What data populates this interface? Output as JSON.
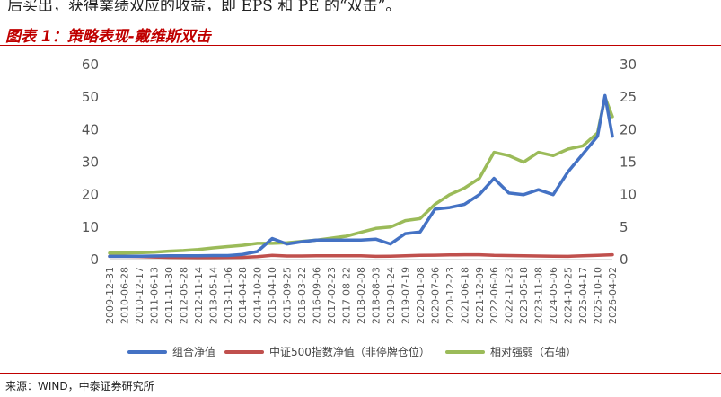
{
  "header": {
    "intro_text": "后买出，获得業绩双应的收益，即 EPS 和 PE 的“双击”。",
    "figure_title": "图表 1：策略表现-戴维斯双击"
  },
  "footer": {
    "source": "来源：WIND，中泰证券研究所"
  },
  "chart_data": {
    "type": "line",
    "x_tick_labels": [
      "2009-12-31",
      "2010-06-28",
      "2010-12-17",
      "2011-06-13",
      "2011-11-30",
      "2012-05-28",
      "2012-11-14",
      "2013-05-14",
      "2013-11-06",
      "2014-04-28",
      "2014-10-20",
      "2015-04-10",
      "2015-09-25",
      "2016-03-22",
      "2016-09-06",
      "2017-02-23",
      "2017-08-22",
      "2018-02-08",
      "2018-08-03",
      "2019-01-24",
      "2019-07-19",
      "2020-01-08",
      "2020-07-06",
      "2020-12-23",
      "2021-06-18",
      "2021-12-09",
      "2022-06-06",
      "2022-11-23",
      "2023-05-18",
      "2023-11-08",
      "2024-05-06",
      "2024-10-25",
      "2025-04-17",
      "2025-10-10",
      "2026-04-02"
    ],
    "y_left": {
      "min": 0,
      "max": 60,
      "ticks": [
        0,
        10,
        20,
        30,
        40,
        50,
        60
      ]
    },
    "y_right": {
      "min": 0,
      "max": 30,
      "ticks": [
        0,
        5,
        10,
        15,
        20,
        25,
        30
      ]
    },
    "grid": false,
    "legend_position": "bottom",
    "series": [
      {
        "name": "组合净值",
        "axis": "left",
        "color": "#4472c4",
        "values": [
          1.0,
          1.0,
          1.05,
          1.1,
          1.15,
          1.15,
          1.2,
          1.25,
          1.25,
          1.6,
          2.5,
          6.5,
          4.8,
          5.5,
          6.0,
          6.0,
          6.0,
          6.0,
          6.3,
          4.8,
          8.0,
          8.5,
          15.5,
          16.0,
          17.0,
          20.0,
          25.0,
          20.5,
          20.0,
          21.5,
          20.0,
          27.0,
          32.5,
          38.0,
          38.0
        ],
        "peak": {
          "after_index": 33,
          "value": 50.5
        }
      },
      {
        "name": "中证500指数净值（非停牌仓位）",
        "axis": "left",
        "color": "#c0504d",
        "values": [
          1.0,
          1.0,
          0.95,
          0.8,
          0.7,
          0.65,
          0.6,
          0.6,
          0.65,
          0.7,
          0.9,
          1.3,
          1.1,
          1.1,
          1.15,
          1.2,
          1.2,
          1.15,
          1.0,
          1.05,
          1.2,
          1.3,
          1.35,
          1.45,
          1.5,
          1.5,
          1.3,
          1.25,
          1.2,
          1.1,
          1.05,
          1.0,
          1.2,
          1.3,
          1.5
        ]
      },
      {
        "name": "相对强弱（右轴）",
        "axis": "right",
        "color": "#9bbb59",
        "values": [
          1.0,
          1.0,
          1.05,
          1.15,
          1.3,
          1.4,
          1.55,
          1.8,
          2.0,
          2.2,
          2.5,
          2.5,
          2.6,
          2.8,
          3.0,
          3.3,
          3.6,
          4.2,
          4.8,
          5.0,
          6.0,
          6.3,
          8.5,
          10.0,
          11.0,
          12.5,
          16.5,
          16.0,
          15.0,
          16.5,
          16.0,
          17.0,
          17.5,
          19.5,
          22.0
        ],
        "peak": {
          "after_index": 33,
          "value": 25.0
        }
      }
    ]
  }
}
